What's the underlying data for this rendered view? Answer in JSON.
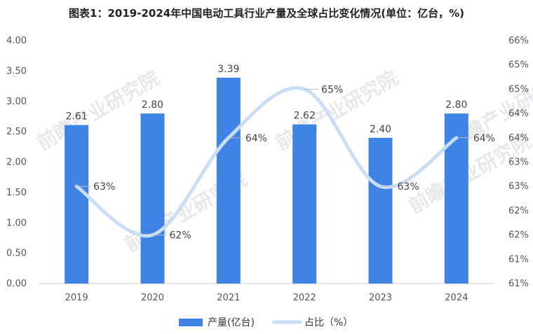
{
  "title": "图表1：2019-2024年中国电动工具行业产量及全球占比变化情况(单位：亿台，%)",
  "chart_data": {
    "type": "bar",
    "categories": [
      "2019",
      "2020",
      "2021",
      "2022",
      "2023",
      "2024"
    ],
    "series": [
      {
        "name": "产量(亿台)",
        "type": "bar",
        "axis": "left",
        "values": [
          2.61,
          2.8,
          3.39,
          2.62,
          2.4,
          2.8
        ],
        "labels": [
          "2.61",
          "2.80",
          "3.39",
          "2.62",
          "2.40",
          "2.80"
        ],
        "color": "#3f84e5"
      },
      {
        "name": "占比（%）",
        "type": "line",
        "axis": "right",
        "values": [
          63,
          62,
          64,
          65,
          63,
          64
        ],
        "labels": [
          "63%",
          "62%",
          "64%",
          "65%",
          "63%",
          "64%"
        ],
        "color": "#c9def5"
      }
    ],
    "ylim_left": [
      0,
      4
    ],
    "yticks_left": [
      "0.00",
      "0.50",
      "1.00",
      "1.50",
      "2.00",
      "2.50",
      "3.00",
      "3.50",
      "4.00"
    ],
    "ylim_right": [
      61,
      66
    ],
    "yticks_right": [
      "61%",
      "61%",
      "62%",
      "62%",
      "63%",
      "63%",
      "64%",
      "64%",
      "65%",
      "65%",
      "66%"
    ],
    "legend_position": "bottom",
    "grid": false
  },
  "watermark": "前瞻产业研究院"
}
